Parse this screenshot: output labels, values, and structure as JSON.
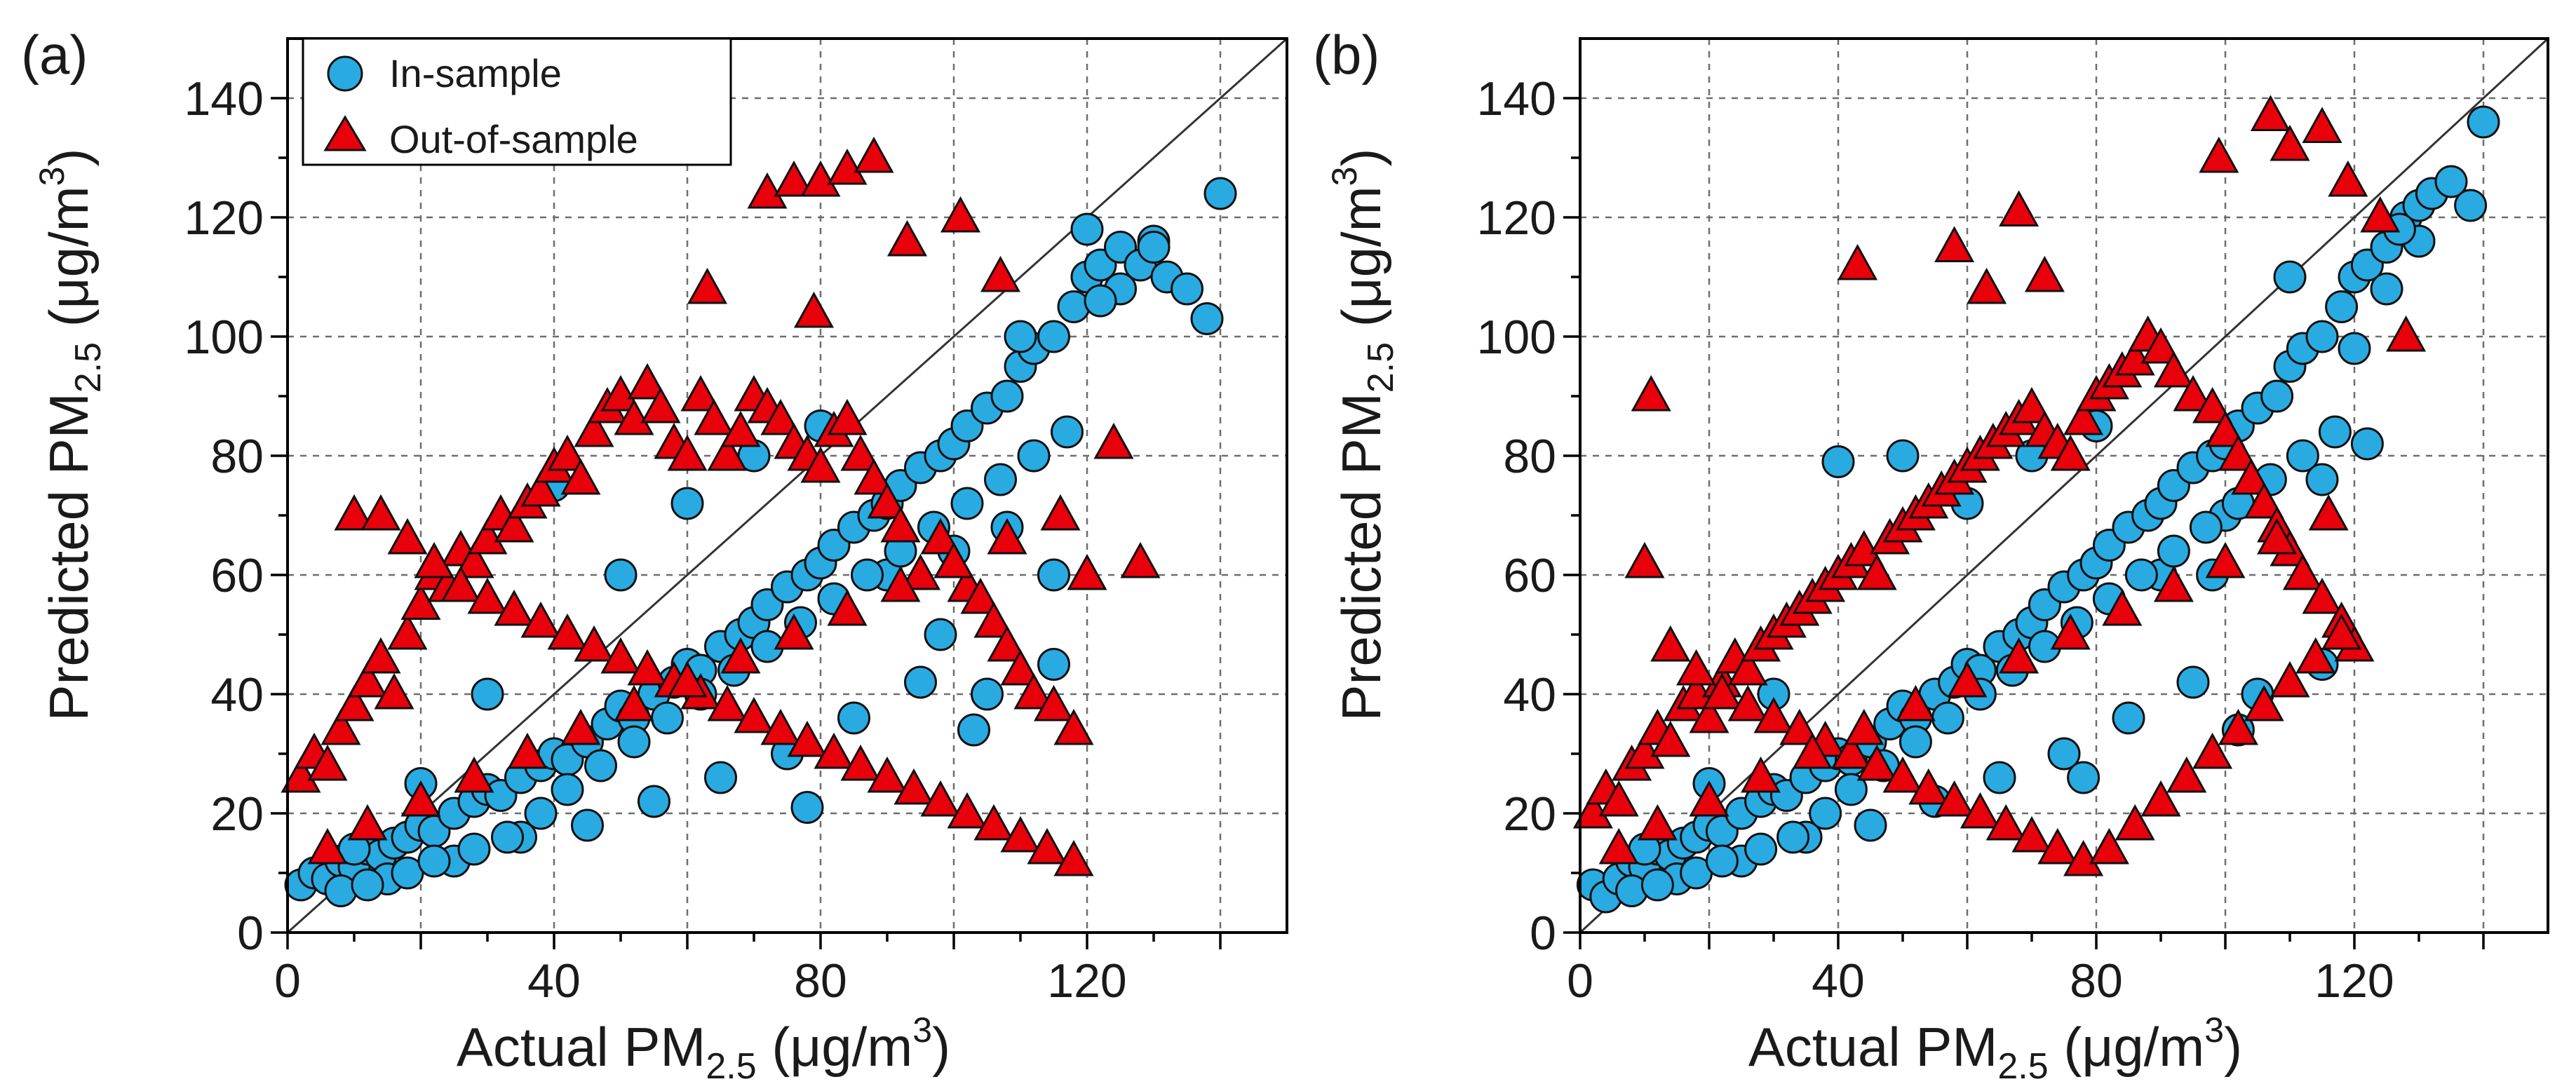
{
  "colors": {
    "in_sample": "#29ABE2",
    "out_of_sample": "#E8000B",
    "marker_edge": "#111111",
    "grid": "#6e6e6e"
  },
  "chart_data": [
    {
      "panel_label": "(a)",
      "type": "scatter",
      "xlabel": "Actual PM2.5 (μg/m3)",
      "ylabel": "Predicted PM2.5 (μg/m3)",
      "xlim": [
        0,
        150
      ],
      "ylim": [
        0,
        150
      ],
      "x_ticks": [
        0,
        40,
        80,
        120
      ],
      "y_ticks": [
        0,
        20,
        40,
        60,
        80,
        100,
        120,
        140
      ],
      "grid": true,
      "identity_line": true,
      "legend": {
        "position": "top-left",
        "entries": [
          "In-sample",
          "Out-of-sample"
        ]
      },
      "series": [
        {
          "name": "In-sample",
          "marker": "circle",
          "x": [
            2,
            4,
            6,
            8,
            10,
            12,
            14,
            16,
            18,
            20,
            22,
            25,
            28,
            30,
            32,
            35,
            38,
            40,
            42,
            45,
            48,
            50,
            52,
            55,
            58,
            60,
            62,
            65,
            68,
            70,
            72,
            75,
            78,
            80,
            82,
            85,
            88,
            90,
            92,
            95,
            98,
            100,
            102,
            105,
            108,
            110,
            112,
            115,
            118,
            120,
            122,
            125,
            128,
            130,
            132,
            135,
            138,
            140,
            8,
            15,
            25,
            35,
            45,
            55,
            65,
            75,
            85,
            95,
            105,
            115,
            125,
            40,
            60,
            70,
            80,
            90,
            100,
            110,
            120,
            130,
            50,
            30,
            20,
            10,
            12,
            18,
            22,
            28,
            33,
            38,
            42,
            47,
            52,
            57,
            62,
            67,
            72,
            77,
            82,
            87,
            92,
            97,
            102,
            107,
            112,
            117,
            78,
            98,
            103,
            108,
            115,
            122
          ],
          "y": [
            8,
            10,
            9,
            12,
            11,
            14,
            13,
            15,
            16,
            18,
            17,
            20,
            22,
            24,
            23,
            26,
            28,
            30,
            29,
            32,
            35,
            38,
            36,
            40,
            42,
            45,
            44,
            48,
            50,
            52,
            55,
            58,
            60,
            62,
            65,
            68,
            70,
            72,
            75,
            78,
            80,
            82,
            85,
            88,
            90,
            95,
            98,
            100,
            105,
            110,
            112,
            115,
            112,
            116,
            110,
            108,
            103,
            124,
            7,
            9,
            12,
            16,
            18,
            22,
            26,
            30,
            36,
            42,
            40,
            45,
            108,
            75,
            72,
            80,
            85,
            60,
            64,
            100,
            118,
            115,
            60,
            40,
            25,
            14,
            8,
            10,
            12,
            14,
            16,
            20,
            24,
            28,
            32,
            36,
            40,
            44,
            48,
            52,
            56,
            60,
            64,
            68,
            72,
            76,
            80,
            84,
            21,
            50,
            34,
            68,
            60,
            106
          ]
        },
        {
          "name": "Out-of-sample",
          "marker": "triangle",
          "x": [
            2,
            4,
            6,
            8,
            10,
            12,
            14,
            16,
            18,
            20,
            22,
            24,
            26,
            28,
            30,
            32,
            34,
            36,
            38,
            40,
            42,
            44,
            46,
            48,
            50,
            52,
            54,
            56,
            58,
            60,
            62,
            64,
            66,
            68,
            70,
            72,
            74,
            76,
            78,
            80,
            82,
            84,
            86,
            88,
            90,
            92,
            95,
            98,
            100,
            102,
            104,
            106,
            108,
            110,
            112,
            115,
            118,
            120,
            124,
            128,
            10,
            14,
            18,
            22,
            26,
            30,
            34,
            38,
            42,
            46,
            50,
            54,
            58,
            62,
            66,
            70,
            74,
            78,
            82,
            86,
            90,
            94,
            98,
            102,
            106,
            110,
            114,
            118,
            6,
            12,
            20,
            28,
            36,
            44,
            52,
            60,
            68,
            76,
            84,
            92,
            100,
            108,
            116,
            72,
            76,
            80,
            84,
            88,
            63,
            79,
            93,
            101,
            107
          ],
          "y": [
            26,
            30,
            28,
            34,
            38,
            42,
            46,
            40,
            50,
            55,
            60,
            58,
            64,
            62,
            66,
            70,
            68,
            72,
            74,
            78,
            80,
            76,
            84,
            88,
            90,
            86,
            92,
            88,
            82,
            80,
            90,
            86,
            80,
            84,
            90,
            88,
            86,
            82,
            80,
            78,
            84,
            86,
            80,
            76,
            72,
            68,
            60,
            66,
            62,
            58,
            56,
            52,
            48,
            44,
            40,
            38,
            34,
            60,
            82,
            62,
            70,
            70,
            66,
            62,
            58,
            56,
            54,
            52,
            50,
            48,
            46,
            44,
            42,
            40,
            38,
            36,
            34,
            32,
            30,
            28,
            26,
            24,
            22,
            20,
            18,
            16,
            14,
            12,
            14,
            18,
            22,
            26,
            30,
            34,
            38,
            42,
            46,
            50,
            54,
            58,
            62,
            66,
            70,
            124,
            126,
            126,
            128,
            130,
            108,
            104,
            116,
            120,
            110
          ]
        }
      ]
    },
    {
      "panel_label": "(b)",
      "type": "scatter",
      "xlabel": "Actual PM2.5 (μg/m3)",
      "ylabel": "Predicted PM2.5 (μg/m3)",
      "xlim": [
        0,
        150
      ],
      "ylim": [
        0,
        150
      ],
      "x_ticks": [
        0,
        40,
        80,
        120
      ],
      "y_ticks": [
        0,
        20,
        40,
        60,
        80,
        100,
        120,
        140
      ],
      "grid": true,
      "identity_line": true,
      "series": [
        {
          "name": "In-sample",
          "marker": "circle",
          "x": [
            2,
            4,
            6,
            8,
            10,
            12,
            14,
            16,
            18,
            20,
            22,
            25,
            28,
            30,
            32,
            35,
            38,
            40,
            42,
            45,
            48,
            50,
            52,
            55,
            58,
            60,
            62,
            65,
            68,
            70,
            72,
            75,
            78,
            80,
            82,
            85,
            88,
            90,
            92,
            95,
            98,
            100,
            102,
            105,
            108,
            110,
            112,
            115,
            118,
            120,
            122,
            125,
            128,
            130,
            132,
            135,
            138,
            140,
            8,
            15,
            25,
            35,
            45,
            55,
            65,
            75,
            85,
            95,
            105,
            115,
            125,
            40,
            60,
            70,
            80,
            90,
            100,
            110,
            120,
            130,
            50,
            30,
            20,
            10,
            12,
            18,
            22,
            28,
            33,
            38,
            42,
            47,
            52,
            57,
            62,
            67,
            72,
            77,
            82,
            87,
            92,
            97,
            102,
            107,
            112,
            117,
            78,
            98,
            102,
            115,
            122,
            127
          ],
          "y": [
            8,
            6,
            9,
            12,
            11,
            14,
            13,
            15,
            16,
            18,
            17,
            20,
            22,
            24,
            23,
            26,
            28,
            30,
            29,
            32,
            35,
            38,
            36,
            40,
            42,
            45,
            44,
            48,
            50,
            52,
            55,
            58,
            60,
            62,
            65,
            68,
            70,
            72,
            75,
            78,
            80,
            82,
            85,
            88,
            90,
            95,
            98,
            100,
            105,
            110,
            112,
            115,
            120,
            122,
            124,
            126,
            122,
            136,
            7,
            9,
            12,
            16,
            18,
            22,
            26,
            30,
            36,
            42,
            40,
            45,
            108,
            79,
            72,
            80,
            85,
            60,
            70,
            110,
            98,
            116,
            80,
            40,
            25,
            14,
            8,
            10,
            12,
            14,
            16,
            20,
            24,
            28,
            32,
            36,
            40,
            44,
            48,
            52,
            56,
            60,
            64,
            68,
            72,
            76,
            80,
            84,
            26,
            60,
            34,
            76,
            82,
            118
          ]
        },
        {
          "name": "Out-of-sample",
          "marker": "triangle",
          "x": [
            2,
            4,
            6,
            8,
            10,
            12,
            14,
            16,
            18,
            20,
            22,
            24,
            26,
            28,
            30,
            32,
            34,
            36,
            38,
            40,
            42,
            44,
            46,
            48,
            50,
            52,
            54,
            56,
            58,
            60,
            62,
            64,
            66,
            68,
            70,
            72,
            74,
            76,
            78,
            80,
            82,
            84,
            86,
            88,
            90,
            92,
            95,
            98,
            100,
            102,
            104,
            106,
            108,
            110,
            112,
            115,
            118,
            120,
            124,
            128,
            10,
            14,
            18,
            22,
            26,
            30,
            34,
            38,
            42,
            46,
            50,
            54,
            58,
            62,
            66,
            70,
            74,
            78,
            82,
            86,
            90,
            94,
            98,
            102,
            106,
            110,
            114,
            118,
            6,
            12,
            20,
            28,
            36,
            44,
            52,
            60,
            68,
            76,
            84,
            92,
            100,
            108,
            116,
            11,
            43,
            58,
            63,
            68,
            72,
            99,
            107,
            110,
            115,
            119
          ],
          "y": [
            20,
            24,
            22,
            28,
            30,
            34,
            32,
            38,
            40,
            36,
            42,
            46,
            44,
            48,
            50,
            52,
            54,
            56,
            58,
            60,
            62,
            64,
            60,
            66,
            68,
            70,
            72,
            74,
            76,
            78,
            80,
            82,
            84,
            86,
            88,
            84,
            82,
            80,
            86,
            90,
            92,
            94,
            96,
            100,
            98,
            94,
            90,
            88,
            84,
            80,
            76,
            72,
            68,
            64,
            60,
            56,
            52,
            48,
            120,
            100,
            62,
            48,
            44,
            40,
            38,
            36,
            34,
            32,
            30,
            28,
            26,
            24,
            22,
            20,
            18,
            16,
            14,
            12,
            14,
            18,
            22,
            26,
            30,
            34,
            38,
            42,
            46,
            50,
            14,
            18,
            22,
            26,
            30,
            34,
            38,
            42,
            46,
            50,
            54,
            58,
            62,
            66,
            70,
            90,
            112,
            115,
            108,
            121,
            110,
            130,
            137,
            132,
            135,
            126
          ]
        }
      ]
    }
  ]
}
